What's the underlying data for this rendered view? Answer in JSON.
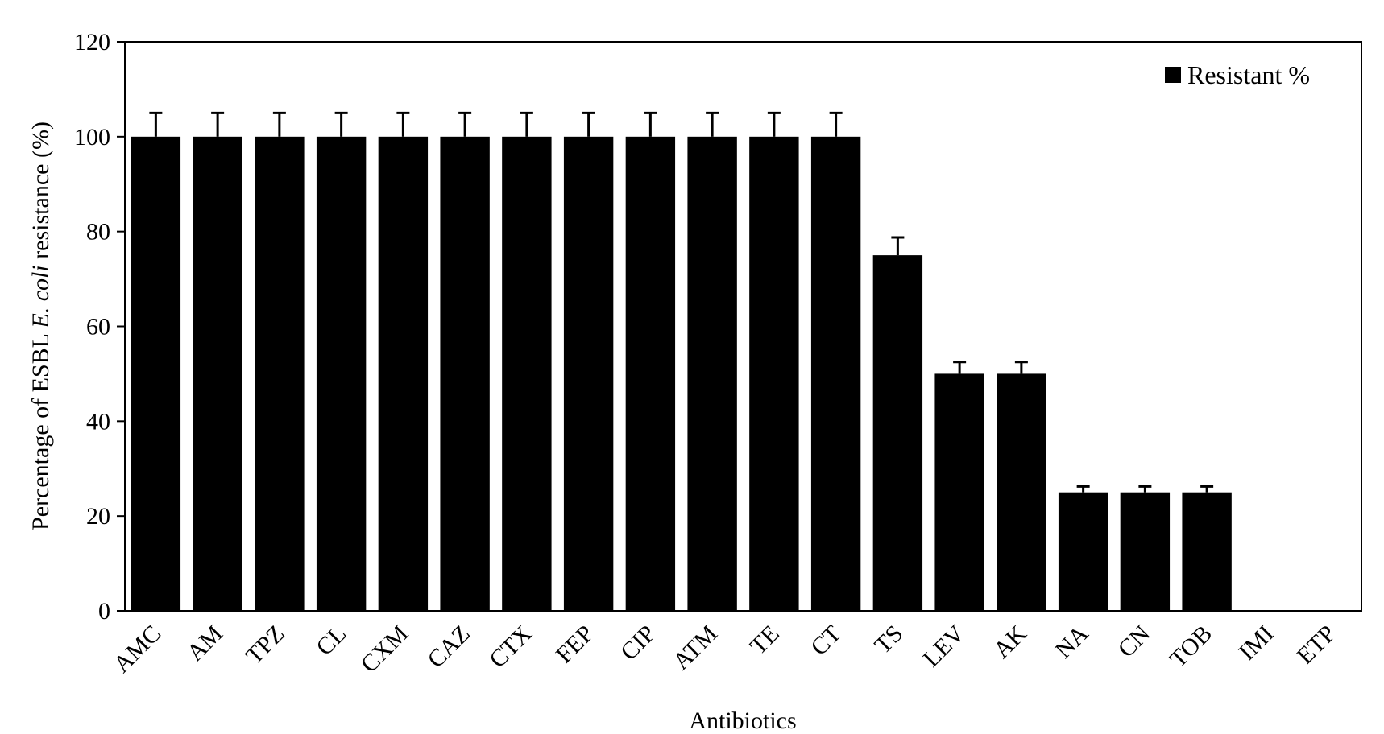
{
  "chart_data": {
    "type": "bar",
    "categories": [
      "AMC",
      "AM",
      "TPZ",
      "CL",
      "CXM",
      "CAZ",
      "CTX",
      "FEP",
      "CIP",
      "ATM",
      "TE",
      "CT",
      "TS",
      "LEV",
      "AK",
      "NA",
      "CN",
      "TOB",
      "IMI",
      "ETP"
    ],
    "series": [
      {
        "name": "Resistant %",
        "values": [
          100,
          100,
          100,
          100,
          100,
          100,
          100,
          100,
          100,
          100,
          100,
          100,
          75,
          50,
          50,
          25,
          25,
          25,
          0,
          0
        ],
        "errors": [
          5,
          5,
          5,
          5,
          5,
          5,
          5,
          5,
          5,
          5,
          5,
          5,
          3.75,
          2.5,
          2.5,
          1.25,
          1.25,
          1.25,
          0,
          0
        ],
        "color": "#000000"
      }
    ],
    "ylabel_parts": [
      "Percentage of ESBL ",
      "E. coli",
      " resistance (%)"
    ],
    "xlabel": "Antibiotics",
    "ylim": [
      0,
      120
    ],
    "yticks": [
      0,
      20,
      40,
      60,
      80,
      100,
      120
    ],
    "grid": false,
    "legend_position": "top-right"
  }
}
